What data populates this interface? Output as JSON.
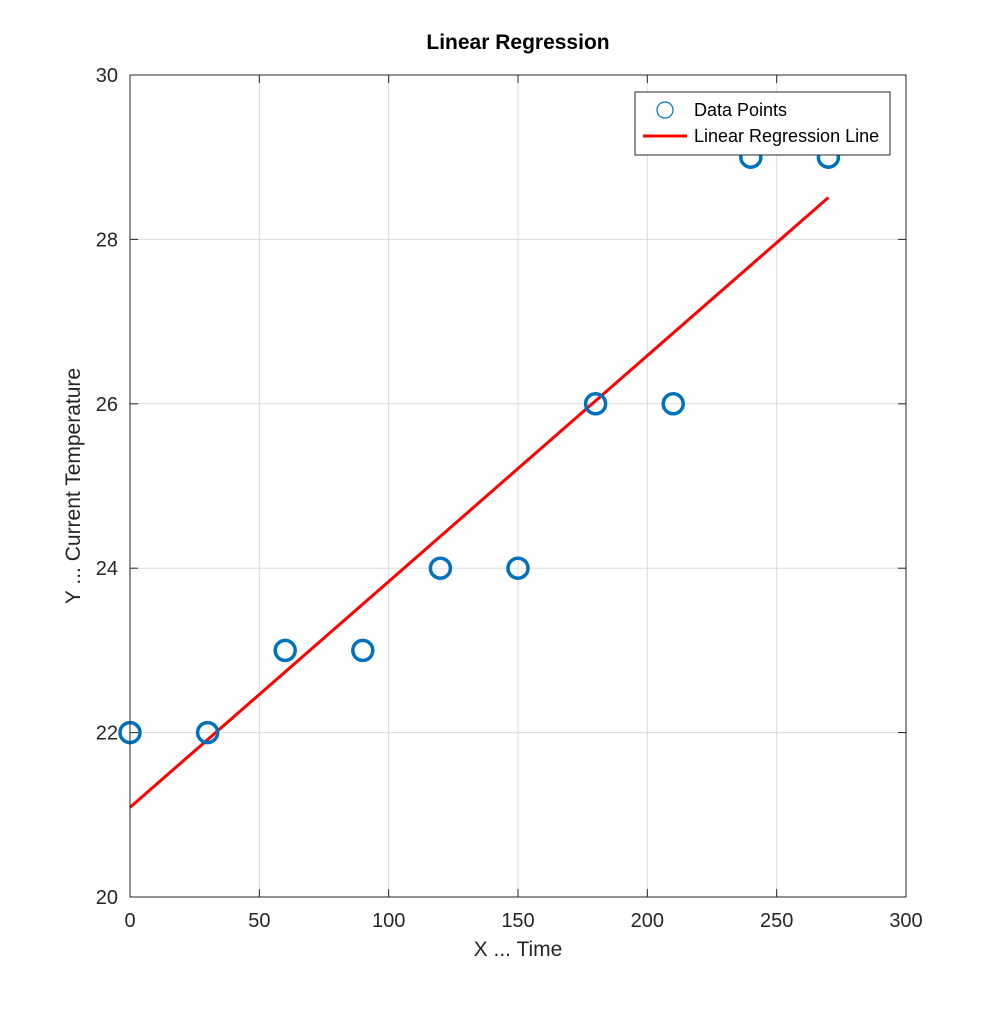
{
  "chart_data": {
    "type": "scatter",
    "title": "Linear Regression",
    "xlabel": "X ... Time",
    "ylabel": "Y ... Current Temperature",
    "xlim": [
      0,
      300
    ],
    "ylim": [
      20,
      30
    ],
    "xticks": [
      0,
      50,
      100,
      150,
      200,
      250,
      300
    ],
    "yticks": [
      20,
      22,
      24,
      26,
      28,
      30
    ],
    "grid": true,
    "legend_position": "top-right",
    "series": [
      {
        "name": "Data Points",
        "type": "scatter",
        "marker": "circle",
        "color": "#0072BD",
        "x": [
          0,
          30,
          60,
          90,
          120,
          150,
          180,
          210,
          240,
          270
        ],
        "y": [
          22,
          22,
          23,
          23,
          24,
          24,
          26,
          26,
          29,
          29
        ]
      },
      {
        "name": "Linear Regression Line",
        "type": "line",
        "color": "#FF0000",
        "x": [
          0,
          270
        ],
        "y": [
          21.09,
          28.51
        ]
      }
    ]
  }
}
